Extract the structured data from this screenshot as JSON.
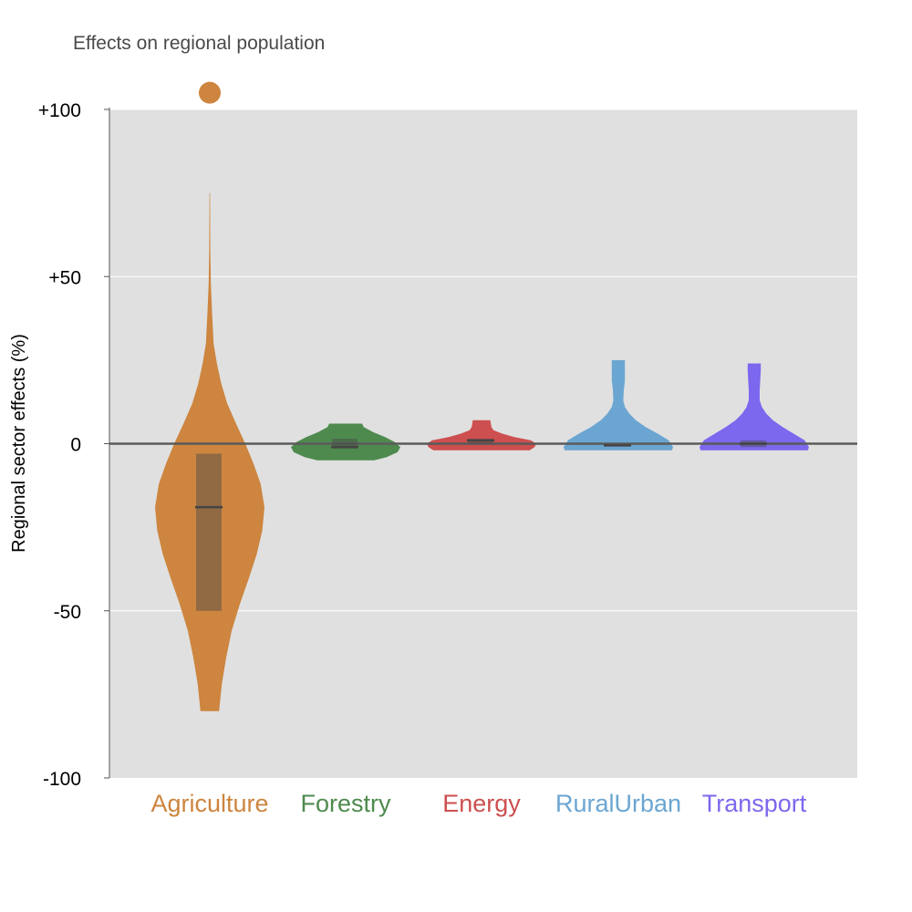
{
  "chart_data": {
    "type": "violin",
    "title": "Effects on regional population",
    "xlabel": "",
    "ylabel": "Regional sector effects (%)",
    "ylim": [
      -100,
      100
    ],
    "yticks": [
      {
        "value": 100,
        "label": "+100"
      },
      {
        "value": 50,
        "label": "+50"
      },
      {
        "value": 0,
        "label": "0"
      },
      {
        "value": -50,
        "label": "-50"
      },
      {
        "value": -100,
        "label": "-100"
      }
    ],
    "grid": true,
    "zero_line": true,
    "categories": [
      {
        "name": "Agriculture",
        "color": "#CD853F",
        "min": -80,
        "max": 75,
        "median": -19,
        "q1": -50,
        "q3": -3,
        "outliers": [
          105
        ],
        "density": [
          [
            -80,
            0.17
          ],
          [
            -72,
            0.22
          ],
          [
            -64,
            0.3
          ],
          [
            -56,
            0.4
          ],
          [
            -48,
            0.55
          ],
          [
            -40,
            0.72
          ],
          [
            -33,
            0.86
          ],
          [
            -26,
            0.96
          ],
          [
            -19,
            1.0
          ],
          [
            -12,
            0.93
          ],
          [
            -6,
            0.8
          ],
          [
            0,
            0.65
          ],
          [
            6,
            0.48
          ],
          [
            12,
            0.32
          ],
          [
            18,
            0.21
          ],
          [
            24,
            0.13
          ],
          [
            30,
            0.07
          ],
          [
            40,
            0.04
          ],
          [
            48,
            0.02
          ],
          [
            58,
            0.01
          ],
          [
            75,
            0.005
          ]
        ]
      },
      {
        "name": "Forestry",
        "color": "#4E8A4E",
        "min": -5,
        "max": 6,
        "median": -1,
        "q1": -1.5,
        "q3": 1.5,
        "outliers": [],
        "density": [
          [
            -5,
            0.52
          ],
          [
            -4,
            0.75
          ],
          [
            -2.5,
            0.95
          ],
          [
            -1,
            1.0
          ],
          [
            0.5,
            0.9
          ],
          [
            2,
            0.72
          ],
          [
            3.5,
            0.5
          ],
          [
            5,
            0.33
          ],
          [
            6,
            0.3
          ]
        ]
      },
      {
        "name": "Energy",
        "color": "#CD4F4F",
        "min": -2,
        "max": 7,
        "median": 1,
        "q1": 0,
        "q3": 1.5,
        "outliers": [],
        "density": [
          [
            -2,
            0.88
          ],
          [
            -1,
            0.97
          ],
          [
            0,
            1.0
          ],
          [
            1,
            0.9
          ],
          [
            2,
            0.6
          ],
          [
            3,
            0.38
          ],
          [
            4,
            0.22
          ],
          [
            5,
            0.18
          ],
          [
            6,
            0.17
          ],
          [
            7,
            0.16
          ]
        ]
      },
      {
        "name": "RuralUrban",
        "color": "#6BA6D2",
        "min": -2,
        "max": 25,
        "median": -0.5,
        "q1": -0.8,
        "q3": -0.2,
        "outliers": [],
        "density": [
          [
            -2,
            0.98
          ],
          [
            -1,
            1.0
          ],
          [
            1,
            0.92
          ],
          [
            3,
            0.72
          ],
          [
            5,
            0.5
          ],
          [
            7,
            0.32
          ],
          [
            9,
            0.2
          ],
          [
            11,
            0.12
          ],
          [
            13,
            0.09
          ],
          [
            16,
            0.1
          ],
          [
            19,
            0.12
          ],
          [
            22,
            0.12
          ],
          [
            25,
            0.12
          ]
        ]
      },
      {
        "name": "Transport",
        "color": "#7B68EE",
        "min": -2,
        "max": 24,
        "median": 0,
        "q1": -1,
        "q3": 1,
        "outliers": [],
        "density": [
          [
            -2,
            0.98
          ],
          [
            -1,
            1.0
          ],
          [
            1,
            0.92
          ],
          [
            3,
            0.72
          ],
          [
            5,
            0.52
          ],
          [
            7,
            0.34
          ],
          [
            9,
            0.22
          ],
          [
            11,
            0.14
          ],
          [
            13,
            0.1
          ],
          [
            16,
            0.1
          ],
          [
            19,
            0.11
          ],
          [
            22,
            0.12
          ],
          [
            24,
            0.12
          ]
        ]
      }
    ]
  }
}
